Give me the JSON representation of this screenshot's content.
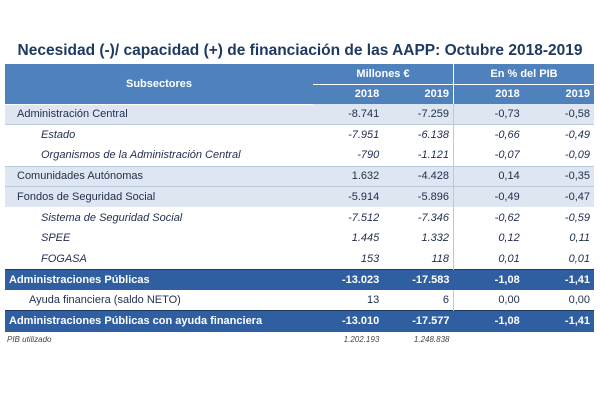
{
  "title": "Necesidad (-)/ capacidad (+) de financiación de las AAPP: Octubre 2018-2019",
  "header": {
    "subsectores": "Subsectores",
    "millones": "Millones €",
    "pib": "En % del PIB",
    "years": [
      "2018",
      "2019",
      "2018",
      "2019"
    ]
  },
  "rows": [
    {
      "label": "Administración Central",
      "v": [
        "-8.741",
        "-7.259",
        "-0,73",
        "-0,58"
      ]
    },
    {
      "label": "Estado",
      "v": [
        "-7.951",
        "-6.138",
        "-0,66",
        "-0,49"
      ]
    },
    {
      "label": "Organismos de la Administración Central",
      "v": [
        "-790",
        "-1.121",
        "-0,07",
        "-0,09"
      ]
    },
    {
      "label": "Comunidades Autónomas",
      "v": [
        "1.632",
        "-4.428",
        "0,14",
        "-0,35"
      ]
    },
    {
      "label": "Fondos de Seguridad Social",
      "v": [
        "-5.914",
        "-5.896",
        "-0,49",
        "-0,47"
      ]
    },
    {
      "label": "Sistema de Seguridad Social",
      "v": [
        "-7.512",
        "-7.346",
        "-0,62",
        "-0,59"
      ]
    },
    {
      "label": "SPEE",
      "v": [
        "1.445",
        "1.332",
        "0,12",
        "0,11"
      ]
    },
    {
      "label": "FOGASA",
      "v": [
        "153",
        "118",
        "0,01",
        "0,01"
      ]
    },
    {
      "label": "Administraciones Públicas",
      "v": [
        "-13.023",
        "-17.583",
        "-1,08",
        "-1,41"
      ]
    },
    {
      "label": "Ayuda financiera (saldo NETO)",
      "v": [
        "13",
        "6",
        "0,00",
        "0,00"
      ]
    },
    {
      "label": "Administraciones Públicas con ayuda financiera",
      "v": [
        "-13.010",
        "-17.577",
        "-1,08",
        "-1,41"
      ]
    }
  ],
  "footer": {
    "label": "PIB utilizado",
    "v": [
      "1.202.193",
      "1.248.838"
    ]
  },
  "colors": {
    "header_bg": "#4f81bd",
    "total_bg": "#2f5fa0",
    "shade_bg": "#dde6f1",
    "title_color": "#1f3a60"
  }
}
